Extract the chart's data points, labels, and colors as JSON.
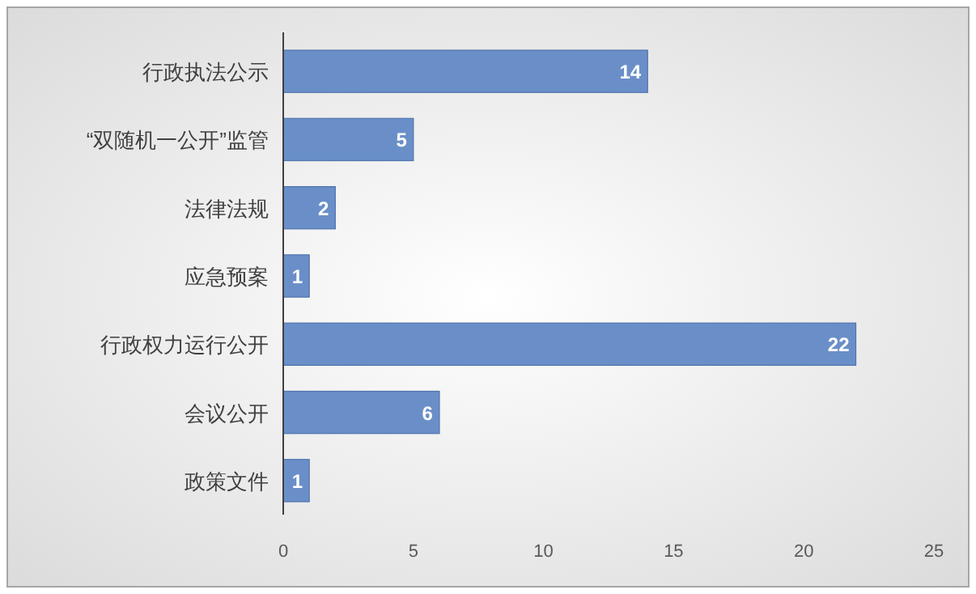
{
  "chart_data": {
    "type": "bar",
    "orientation": "horizontal",
    "categories": [
      "行政执法公示",
      "“双随机一公开”监管",
      "法律法规",
      "应急预案",
      "行政权力运行公开",
      "会议公开",
      "政策文件"
    ],
    "values": [
      14,
      5,
      2,
      1,
      22,
      6,
      1
    ],
    "color": "#6a8fc8",
    "xlim": [
      0,
      25
    ],
    "xticks": [
      0,
      5,
      10,
      15,
      20,
      25
    ],
    "data_labels": true,
    "grid": false
  }
}
